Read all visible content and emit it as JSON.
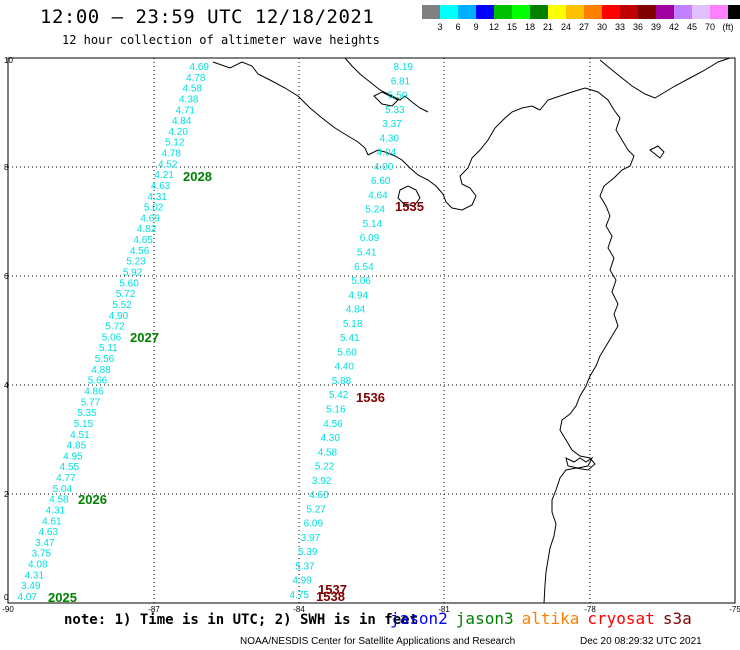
{
  "header": {
    "title": "12:00 — 23:59 UTC 12/18/2021",
    "subtitle": "12 hour collection of altimeter wave heights"
  },
  "legend": {
    "colors": [
      "#808080",
      "#00ffff",
      "#00b0ff",
      "#0000ff",
      "#00c000",
      "#00ff00",
      "#008000",
      "#ffff00",
      "#ffc000",
      "#ff8000",
      "#ff0000",
      "#c00000",
      "#800000",
      "#a000a0",
      "#c080ff",
      "#e0c0ff",
      "#ff80ff",
      "#000000"
    ],
    "labels": [
      "3",
      "6",
      "9",
      "12",
      "15",
      "18",
      "21",
      "24",
      "27",
      "30",
      "33",
      "36",
      "39",
      "42",
      "45",
      "70",
      "(ft)"
    ]
  },
  "axes": {
    "lon_labels": [
      "-90",
      "-87",
      "-84",
      "-81",
      "-78",
      "-75"
    ],
    "lat_labels": [
      "0",
      "2",
      "4",
      "6",
      "8",
      "10"
    ]
  },
  "passes": [
    {
      "id": "2028",
      "color": "#008000"
    },
    {
      "id": "2027",
      "color": "#008000"
    },
    {
      "id": "2026",
      "color": "#008000"
    },
    {
      "id": "2025",
      "color": "#008000"
    },
    {
      "id": "1535",
      "color": "#800000"
    },
    {
      "id": "1536",
      "color": "#800000"
    },
    {
      "id": "1537",
      "color": "#800000"
    },
    {
      "id": "1538",
      "color": "#800000"
    }
  ],
  "west_track": [
    "4.69",
    "4.78",
    "4.58",
    "4.38",
    "4.71",
    "4.84",
    "4.20",
    "5.12",
    "4.78",
    "4.52",
    "4.21",
    "4.63",
    "4.31",
    "5.02",
    "4.69",
    "4.82",
    "4.65",
    "4.56",
    "5.23",
    "5.92",
    "5.60",
    "5.72",
    "5.52",
    "4.90",
    "5.72",
    "5.06",
    "5.11",
    "5.56",
    "4.88",
    "5.66",
    "4.86",
    "5.77",
    "5.35",
    "5.15",
    "4.51",
    "4.85",
    "4.95",
    "4.55",
    "4.77",
    "5.04",
    "4.58",
    "4.31",
    "4.61",
    "4.63",
    "3.47",
    "3.75",
    "4.08",
    "4.31",
    "3.49",
    "4.07"
  ],
  "east_track": [
    "8.19",
    "6.81",
    "5.50",
    "5.33",
    "3.37",
    "4.30",
    "4.04",
    "4.00",
    "6.60",
    "4.64",
    "5.24",
    "5.14",
    "6.09",
    "5.41",
    "6.54",
    "5.06",
    "4.94",
    "4.84",
    "5.18",
    "5.41",
    "5.60",
    "4.40",
    "5.88",
    "5.42",
    "5.16",
    "4.56",
    "4.30",
    "4.58",
    "5.22",
    "3.92",
    "4.60",
    "5.27",
    "6.09",
    "3.97",
    "5.39",
    "5.37",
    "4.99",
    "4.75"
  ],
  "footer": {
    "note": "note: 1) Time is in UTC; 2) SWH is in feet",
    "satellites": [
      {
        "name": "jason2",
        "color": "#0000ff"
      },
      {
        "name": "jason3",
        "color": "#008000"
      },
      {
        "name": "altika",
        "color": "#ff8000"
      },
      {
        "name": "cryosat",
        "color": "#ff0000"
      },
      {
        "name": "s3a",
        "color": "#800000"
      }
    ],
    "credit": "NOAA/NESDIS Center for Satellite Applications and Research",
    "timestamp": "Dec 20 08:29:32 UTC 2021"
  },
  "colors": {
    "swh_text": "#00e0e0",
    "coast": "#000000"
  }
}
